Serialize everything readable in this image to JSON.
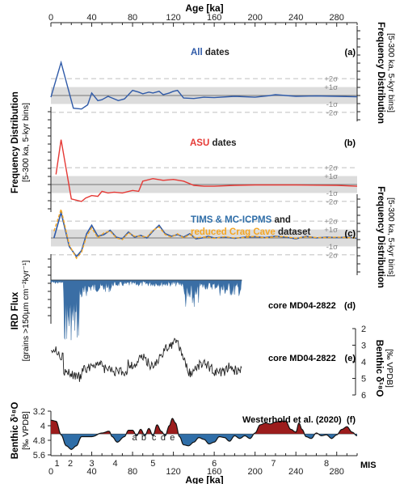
{
  "chart_data": {
    "type": "line",
    "x_axis": {
      "label": "Age [ka]",
      "range": [
        0,
        300
      ],
      "ticks": [
        0,
        40,
        80,
        120,
        160,
        200,
        240,
        280
      ]
    },
    "sigma_labels": [
      "+2σ",
      "+1σ",
      "-1σ",
      "-2σ"
    ],
    "panels": [
      {
        "id": "a",
        "letter": "(a)",
        "title_colored": "All",
        "title_rest": " dates",
        "color": "#2f5aa8",
        "ylabel": "Frequency Distribution",
        "ylabel_sub": "[5-300 ka, 5-kyr bins]",
        "series": [
          {
            "x": [
              0,
              10,
              22,
              30,
              36,
              40,
              46,
              50,
              56,
              60,
              66,
              72,
              80,
              86,
              90,
              96,
              100,
              106,
              110,
              116,
              120,
              124,
              130,
              140,
              150,
              160,
              180,
              200,
              215,
              220,
              240,
              260,
              280,
              300
            ],
            "y": [
              -0.2,
              3.9,
              -1.5,
              -1.6,
              -1.1,
              0.3,
              -0.6,
              -0.5,
              -0.1,
              -0.3,
              -0.6,
              -0.4,
              0.6,
              0.4,
              0.2,
              0.4,
              0.3,
              0.5,
              0.1,
              0.3,
              0.5,
              0.6,
              -0.3,
              -0.35,
              -0.2,
              -0.25,
              -0.1,
              -0.2,
              0.0,
              0.1,
              -0.1,
              -0.05,
              -0.1,
              -0.15
            ]
          }
        ]
      },
      {
        "id": "b",
        "letter": "(b)",
        "title_colored": "ASU",
        "title_rest": " dates",
        "color": "#e53935",
        "ylabel": "Frequency Distribution",
        "ylabel_sub": "[5-300 ka, 5-kyr bins]",
        "series": [
          {
            "x": [
              5,
              10,
              20,
              30,
              34,
              40,
              46,
              50,
              56,
              62,
              70,
              80,
              86,
              90,
              100,
              110,
              120,
              130,
              140,
              150,
              160,
              180,
              200,
              240,
              280,
              300
            ],
            "y": [
              1.2,
              5.3,
              -1.7,
              -2.0,
              -1.6,
              -1.3,
              -1.4,
              -0.8,
              -1.0,
              -0.9,
              -1.0,
              -0.7,
              -0.8,
              0.4,
              0.7,
              0.5,
              0.6,
              0.4,
              -0.1,
              -0.2,
              -0.2,
              -0.1,
              -0.05,
              -0.05,
              -0.1,
              -0.2
            ]
          }
        ]
      },
      {
        "id": "c",
        "letter": "(c)",
        "title_line1_colored": "TIMS & MC-ICPMS",
        "title_line1_rest": " and",
        "title_line2": "reduced Crag Cave",
        "title_line2_rest": " dataset",
        "colors": [
          "#2f5aa8",
          "#f5a623"
        ],
        "ylabel": "Frequency Distribution",
        "ylabel_sub": "[5-300 ka, 5-kyr bins]",
        "series": [
          {
            "name": "TIMS & MC-ICPMS",
            "x": [
              3,
              10,
              18,
              25,
              30,
              35,
              40,
              46,
              52,
              58,
              64,
              70,
              76,
              82,
              88,
              94,
              100,
              106,
              112,
              118,
              124,
              130,
              136,
              142,
              148,
              154,
              160,
              170,
              180,
              190,
              200,
              210,
              220,
              230,
              240,
              250,
              260,
              270,
              280,
              290,
              300
            ],
            "y": [
              0.0,
              3.0,
              -1.0,
              -2.2,
              -1.5,
              0.5,
              1.5,
              0.2,
              0.4,
              0.9,
              0.1,
              -0.1,
              0.7,
              0.1,
              0.3,
              0.0,
              0.8,
              1.5,
              0.5,
              0.2,
              0.4,
              0.1,
              0.5,
              -0.1,
              0.0,
              0.2,
              0.0,
              0.1,
              -0.05,
              0.1,
              0.15,
              0.05,
              0.2,
              0.1,
              -0.1,
              0.2,
              0.0,
              0.1,
              0.05,
              0.1,
              -0.05
            ]
          },
          {
            "name": "reduced Crag Cave",
            "x": [
              3,
              10,
              18,
              25,
              30,
              35,
              40,
              46,
              52,
              58,
              64,
              70,
              76,
              82,
              88,
              94,
              100,
              106,
              112,
              118,
              124,
              130,
              136,
              142,
              148,
              154,
              160,
              170,
              180,
              190,
              200,
              210,
              220,
              230,
              240,
              250,
              260,
              270,
              280,
              290,
              300
            ],
            "y": [
              0.8,
              3.4,
              -0.8,
              -2.4,
              -1.7,
              0.2,
              1.2,
              0.0,
              0.6,
              0.8,
              0.0,
              -0.2,
              0.6,
              0.2,
              0.2,
              0.1,
              0.9,
              1.3,
              0.4,
              0.1,
              0.5,
              0.0,
              0.4,
              0.0,
              0.1,
              0.1,
              -0.05,
              0.15,
              0.0,
              0.05,
              0.2,
              0.0,
              0.15,
              0.15,
              -0.05,
              0.15,
              0.05,
              0.05,
              0.1,
              0.05,
              0.0
            ]
          }
        ]
      },
      {
        "id": "d",
        "letter": "(d)",
        "label": "core MD04-2822",
        "color": "#3a6ea5",
        "ylabel": "IRD Flux",
        "ylabel_sub": "[grains >150µm cm⁻²kyr⁻¹]"
      },
      {
        "id": "e",
        "letter": "(e)",
        "label": "core MD04-2822",
        "ylabel": "Benthic δ¹⁸O",
        "ylabel_sub": "[‰ VPDB]",
        "ylim": [
          2,
          6
        ],
        "yticks": [
          2,
          3,
          4,
          5,
          6
        ],
        "inverted": true
      },
      {
        "id": "f",
        "letter": "(f)",
        "label": "Westerhold et al. (2020)",
        "ylabel": "Benthic δ¹⁸O",
        "ylabel_sub": "[‰ VPDB]",
        "ylim": [
          3.2,
          5.6
        ],
        "yticks": [
          3.2,
          4.0,
          4.8,
          5.6
        ],
        "ytick_labels": [
          "3.2",
          "4",
          "4.8",
          "5.6"
        ],
        "inverted": true,
        "mean": 4.45,
        "colors": {
          "glacial": "#2f6ea8",
          "interglacial": "#9c1c1c"
        },
        "series": [
          {
            "x": [
              0,
              5,
              10,
              15,
              20,
              25,
              30,
              40,
              50,
              57,
              60,
              65,
              72,
              76,
              80,
              84,
              88,
              92,
              96,
              100,
              104,
              108,
              112,
              116,
              119,
              122,
              126,
              130,
              135,
              140,
              145,
              150,
              155,
              160,
              165,
              170,
              175,
              180,
              185,
              190,
              195,
              200,
              205,
              210,
              215,
              220,
              225,
              230,
              235,
              240,
              243,
              246,
              250,
              255,
              260,
              265,
              270,
              275,
              280,
              285,
              290,
              295,
              300
            ],
            "y": [
              3.7,
              3.75,
              4.5,
              5.1,
              5.3,
              5.1,
              4.6,
              4.6,
              4.4,
              4.3,
              4.6,
              4.9,
              4.6,
              4.25,
              4.25,
              4.55,
              4.2,
              4.55,
              4.15,
              4.55,
              3.95,
              4.3,
              4.55,
              4.0,
              3.6,
              3.85,
              4.6,
              5.05,
              5.1,
              4.9,
              4.65,
              4.75,
              5.0,
              4.9,
              4.6,
              4.65,
              4.85,
              4.55,
              4.7,
              4.55,
              4.7,
              4.4,
              3.95,
              3.85,
              3.9,
              3.8,
              3.75,
              3.75,
              4.2,
              4.35,
              3.85,
              4.2,
              4.6,
              4.7,
              4.4,
              4.55,
              4.5,
              4.7,
              4.5,
              4.2,
              4.05,
              4.35,
              4.55
            ]
          }
        ]
      }
    ],
    "mis": {
      "title": "MIS",
      "labels": [
        {
          "text": "1",
          "x": 6
        },
        {
          "text": "2",
          "x": 19
        },
        {
          "text": "3",
          "x": 40
        },
        {
          "text": "4",
          "x": 63
        },
        {
          "text": "5",
          "x": 100
        },
        {
          "text": "6",
          "x": 160
        },
        {
          "text": "7",
          "x": 218
        },
        {
          "text": "8",
          "x": 270
        }
      ],
      "substages": [
        {
          "text": "a",
          "x": 82
        },
        {
          "text": "b",
          "x": 91
        },
        {
          "text": "c",
          "x": 101
        },
        {
          "text": "d",
          "x": 110
        },
        {
          "text": "e",
          "x": 119
        }
      ]
    }
  }
}
